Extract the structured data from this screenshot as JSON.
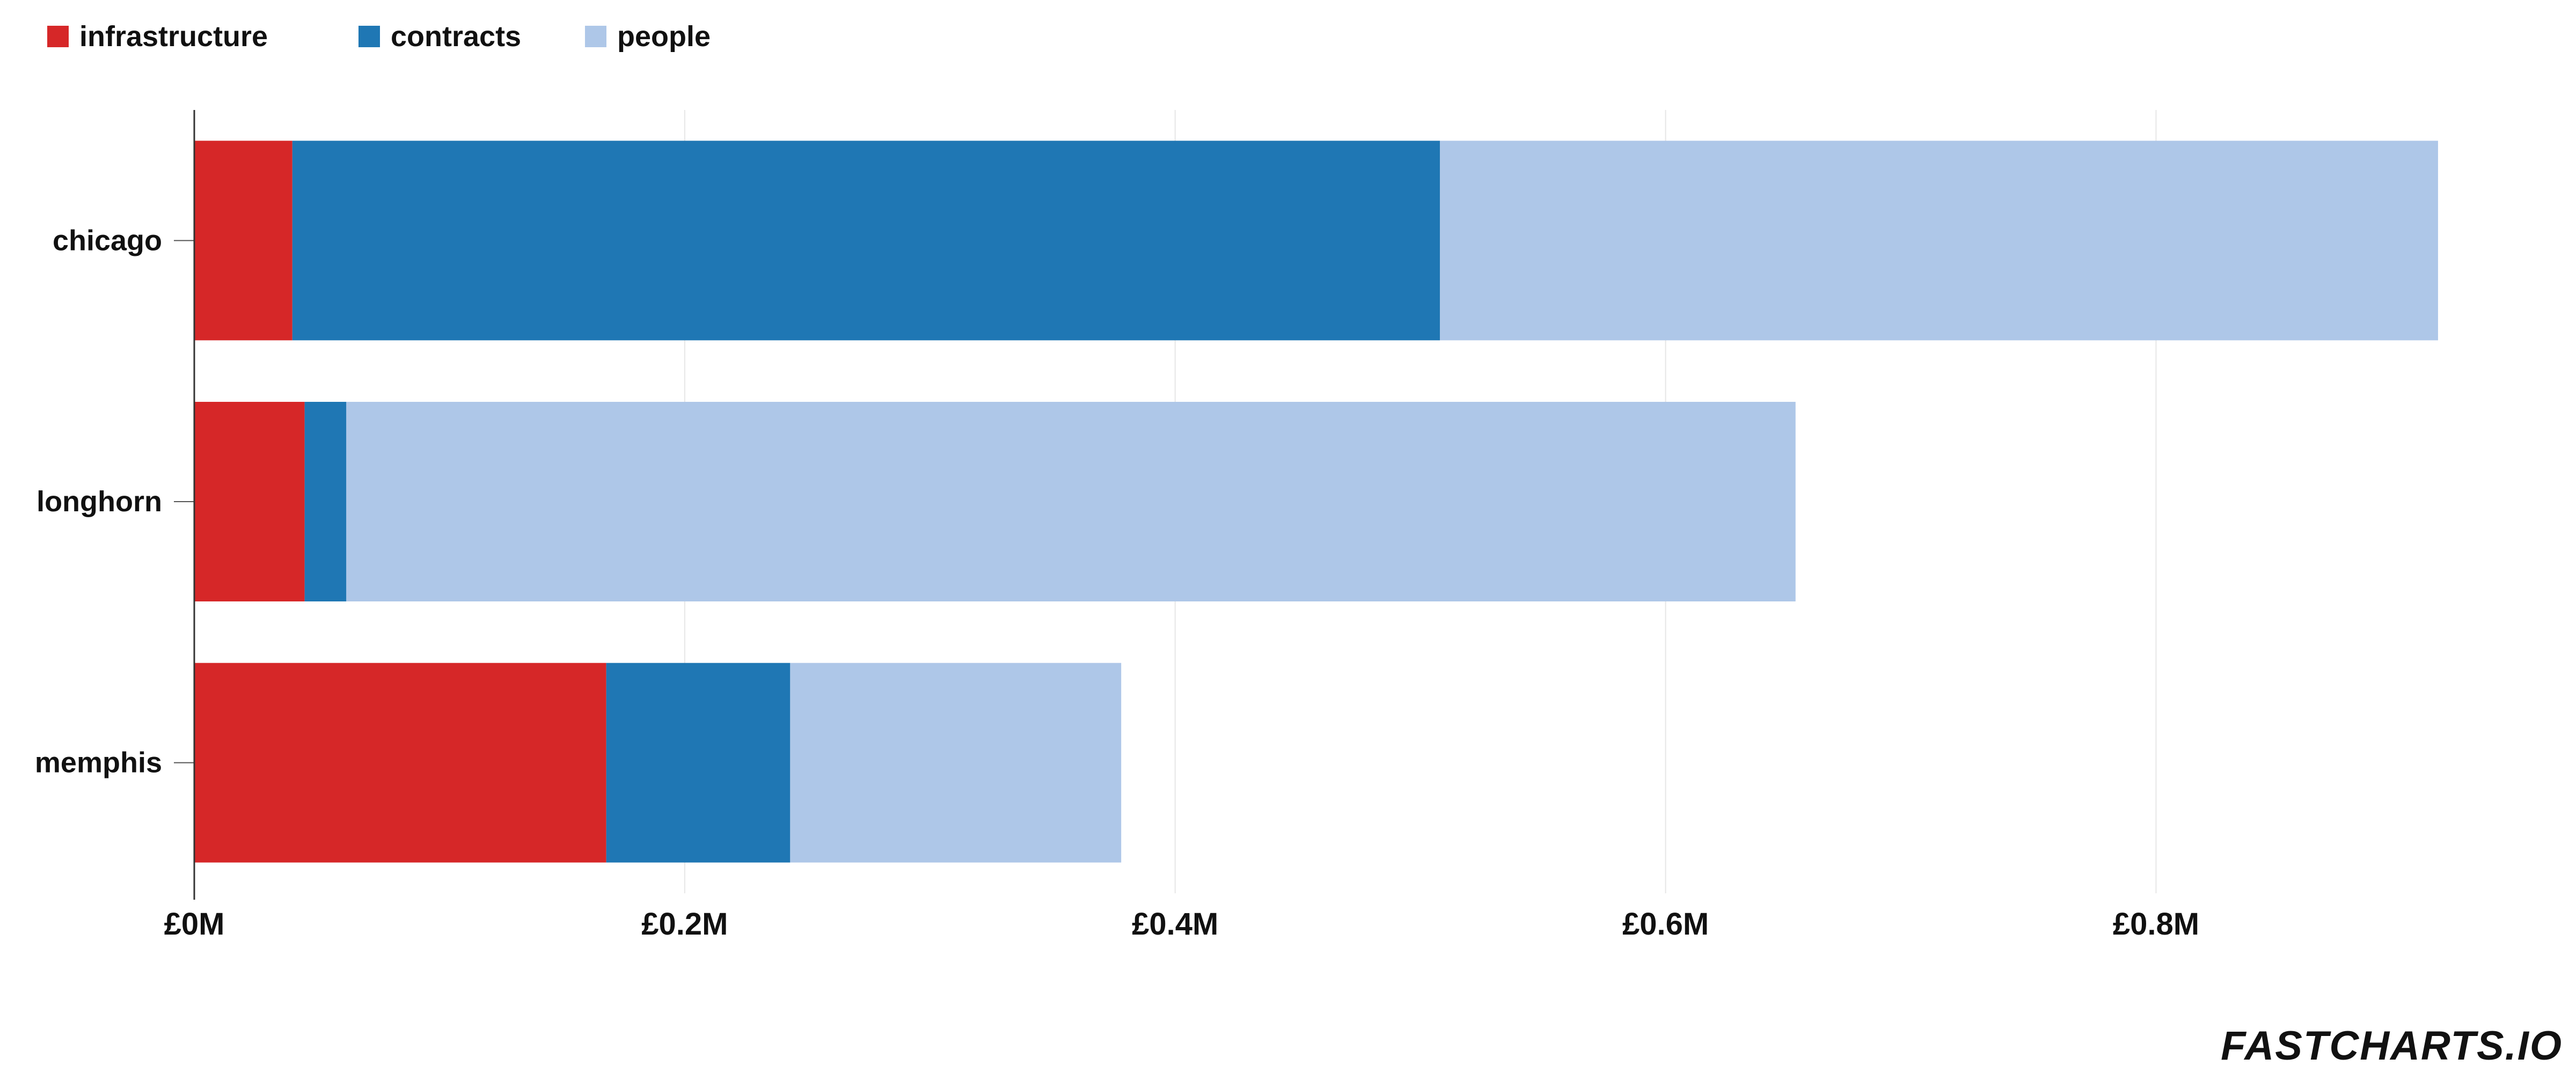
{
  "chart_data": {
    "type": "bar",
    "orientation": "horizontal",
    "stacked": true,
    "categories": [
      "chicago",
      "longhorn",
      "memphis"
    ],
    "series": [
      {
        "name": "infrastructure",
        "color": "#d62728",
        "values": [
          40000,
          45000,
          168000
        ]
      },
      {
        "name": "contracts",
        "color": "#1f77b4",
        "values": [
          468000,
          17000,
          75000
        ]
      },
      {
        "name": "people",
        "color": "#aec7e8",
        "values": [
          407000,
          591000,
          135000
        ]
      }
    ],
    "xlim": [
      0,
      945000
    ],
    "xticks": [
      0,
      200000,
      400000,
      600000,
      800000
    ],
    "xtick_labels": [
      "£0M",
      "£0.2M",
      "£0.4M",
      "£0.6M",
      "£0.8M"
    ],
    "grid": "vertical",
    "legend_position": "top-left",
    "title": "",
    "xlabel": "",
    "ylabel": ""
  },
  "watermark": "FASTCHARTS.IO"
}
